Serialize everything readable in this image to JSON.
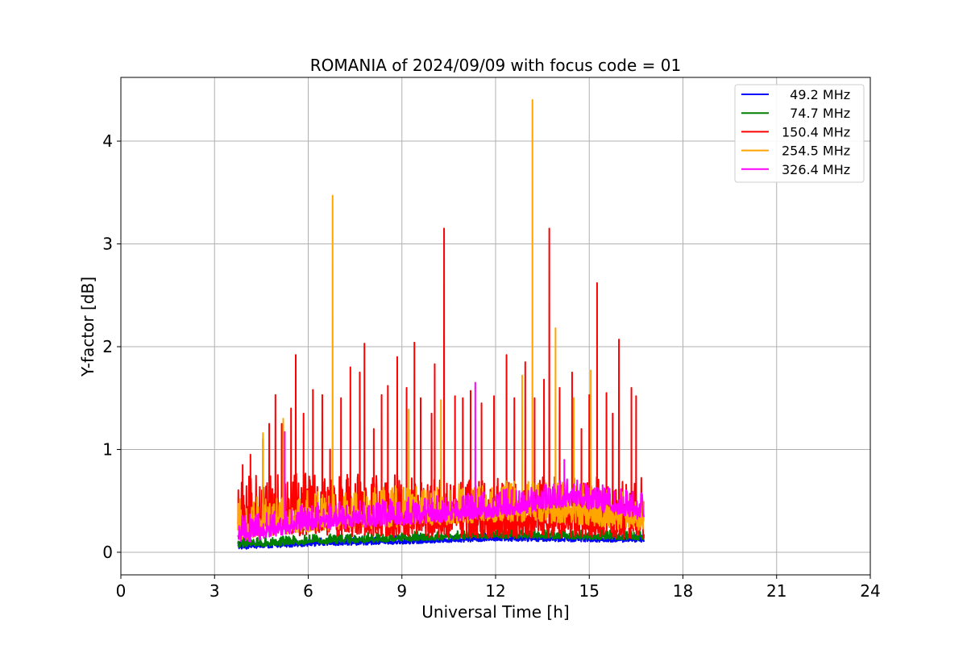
{
  "chart_data": {
    "type": "line",
    "title": "ROMANIA of 2024/09/09 with focus code = 01",
    "xlabel": "Universal Time [h]",
    "ylabel": "Y-factor [dB]",
    "xlim": [
      0,
      24
    ],
    "ylim": [
      -0.22,
      4.62
    ],
    "xticks": [
      0,
      3,
      6,
      9,
      12,
      15,
      18,
      21,
      24
    ],
    "yticks": [
      0,
      1,
      2,
      3,
      4
    ],
    "grid": true,
    "legend_position": "top-right",
    "data_x_range": [
      3.75,
      16.75
    ],
    "series": [
      {
        "name": "  49.2 MHz",
        "color": "#0000ff",
        "baseline": [
          [
            3.75,
            0.05
          ],
          [
            6,
            0.08
          ],
          [
            9,
            0.1
          ],
          [
            12,
            0.13
          ],
          [
            15,
            0.12
          ],
          [
            16.75,
            0.12
          ]
        ],
        "noise": 0.06,
        "peaks": []
      },
      {
        "name": "  74.7 MHz",
        "color": "#008000",
        "baseline": [
          [
            3.75,
            0.07
          ],
          [
            6,
            0.1
          ],
          [
            9,
            0.13
          ],
          [
            12,
            0.16
          ],
          [
            15,
            0.15
          ],
          [
            16.75,
            0.14
          ]
        ],
        "noise": 0.07,
        "peaks": []
      },
      {
        "name": "150.4 MHz",
        "color": "#ff0000",
        "baseline": [
          [
            3.75,
            0.3
          ],
          [
            6,
            0.32
          ],
          [
            9,
            0.3
          ],
          [
            12,
            0.28
          ],
          [
            15,
            0.3
          ],
          [
            16.75,
            0.28
          ]
        ],
        "noise": 0.45,
        "peaks": [
          [
            3.9,
            0.85
          ],
          [
            4.15,
            0.95
          ],
          [
            4.55,
            1.1
          ],
          [
            4.75,
            1.25
          ],
          [
            4.95,
            1.53
          ],
          [
            5.15,
            1.25
          ],
          [
            5.45,
            1.4
          ],
          [
            5.6,
            1.92
          ],
          [
            5.85,
            1.35
          ],
          [
            6.15,
            1.58
          ],
          [
            6.45,
            1.53
          ],
          [
            6.7,
            1.0
          ],
          [
            7.05,
            1.5
          ],
          [
            7.35,
            1.8
          ],
          [
            7.65,
            1.75
          ],
          [
            7.8,
            2.03
          ],
          [
            8.1,
            1.2
          ],
          [
            8.35,
            1.53
          ],
          [
            8.55,
            1.62
          ],
          [
            8.85,
            1.9
          ],
          [
            9.15,
            1.6
          ],
          [
            9.4,
            2.04
          ],
          [
            9.6,
            1.5
          ],
          [
            9.95,
            1.35
          ],
          [
            10.05,
            1.83
          ],
          [
            10.35,
            3.15
          ],
          [
            10.7,
            1.52
          ],
          [
            10.95,
            1.5
          ],
          [
            11.2,
            1.57
          ],
          [
            11.55,
            1.45
          ],
          [
            11.95,
            1.52
          ],
          [
            12.35,
            1.92
          ],
          [
            12.6,
            1.5
          ],
          [
            12.95,
            1.85
          ],
          [
            13.25,
            1.5
          ],
          [
            13.55,
            1.68
          ],
          [
            13.72,
            3.15
          ],
          [
            14.05,
            1.6
          ],
          [
            14.45,
            1.75
          ],
          [
            14.75,
            1.2
          ],
          [
            15.0,
            1.53
          ],
          [
            15.25,
            2.62
          ],
          [
            15.55,
            1.55
          ],
          [
            15.75,
            1.35
          ],
          [
            15.95,
            2.07
          ],
          [
            16.35,
            1.6
          ],
          [
            16.5,
            1.52
          ]
        ]
      },
      {
        "name": "254.5 MHz",
        "color": "#ffa500",
        "baseline": [
          [
            3.75,
            0.22
          ],
          [
            6,
            0.3
          ],
          [
            9,
            0.35
          ],
          [
            12,
            0.4
          ],
          [
            14.5,
            0.38
          ],
          [
            16.75,
            0.3
          ]
        ],
        "noise": 0.3,
        "peaks": [
          [
            4.55,
            1.16
          ],
          [
            5.2,
            1.3
          ],
          [
            6.78,
            3.47
          ],
          [
            9.22,
            1.39
          ],
          [
            10.25,
            1.48
          ],
          [
            12.85,
            1.72
          ],
          [
            13.18,
            4.4
          ],
          [
            13.92,
            2.18
          ],
          [
            14.5,
            1.5
          ],
          [
            15.05,
            1.77
          ]
        ]
      },
      {
        "name": "326.4 MHz",
        "color": "#ff00ff",
        "baseline": [
          [
            3.75,
            0.15
          ],
          [
            6,
            0.28
          ],
          [
            9,
            0.33
          ],
          [
            12,
            0.4
          ],
          [
            14.5,
            0.52
          ],
          [
            15.5,
            0.45
          ],
          [
            16.75,
            0.38
          ]
        ],
        "noise": 0.2,
        "peaks": [
          [
            5.25,
            1.17
          ],
          [
            11.35,
            1.65
          ],
          [
            14.2,
            0.9
          ]
        ]
      }
    ]
  }
}
